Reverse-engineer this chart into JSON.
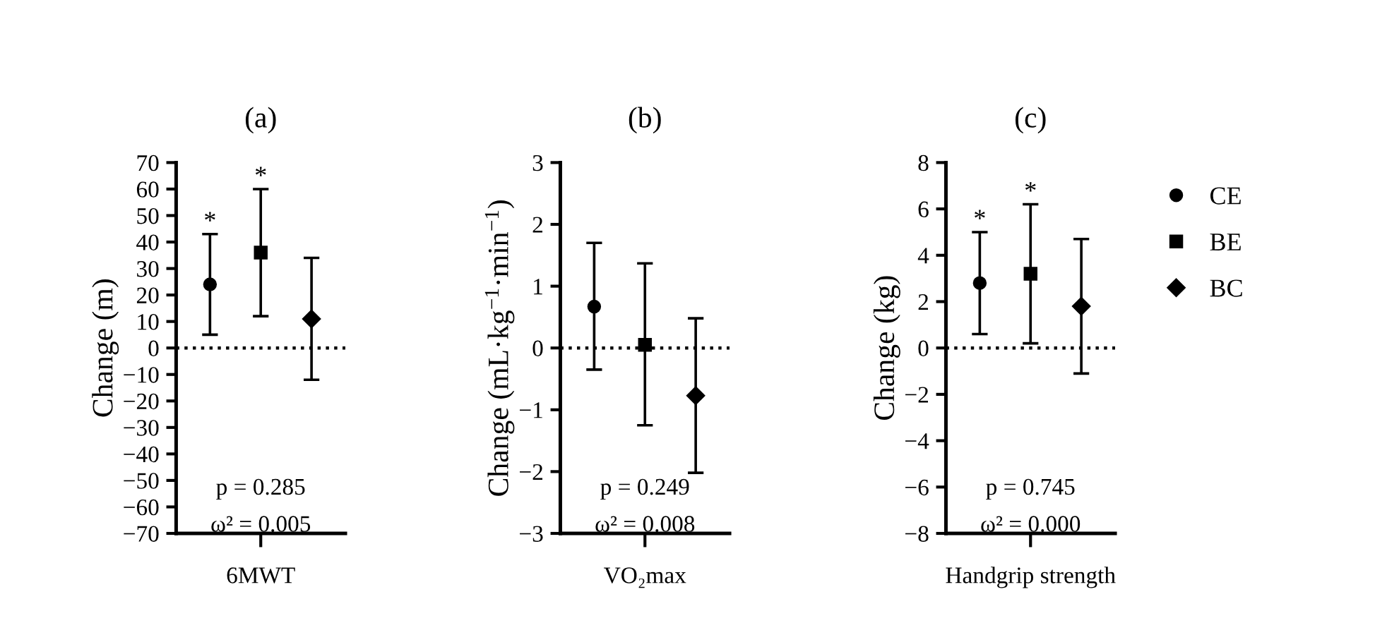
{
  "chart_data": [
    {
      "type": "scatter",
      "title": "(a)",
      "ylabel": "Change (m)",
      "categories": [
        "6MWT"
      ],
      "ylim": [
        -70,
        70
      ],
      "yticks": [
        {
          "value": -70,
          "label": "−70"
        },
        {
          "value": -60,
          "label": "−60"
        },
        {
          "value": -50,
          "label": "−50"
        },
        {
          "value": -40,
          "label": "−40"
        },
        {
          "value": -30,
          "label": "−30"
        },
        {
          "value": -20,
          "label": "−20"
        },
        {
          "value": -10,
          "label": "−10"
        },
        0,
        10,
        20,
        30,
        40,
        50,
        60,
        70
      ],
      "series": [
        {
          "color": "#000000",
          "marker": "circle",
          "values": [
            24
          ],
          "errors": [
            [
              5,
              43
            ]
          ],
          "value_labels": [
            "*"
          ]
        },
        {
          "color": "#000000",
          "marker": "square",
          "values": [
            36
          ],
          "errors": [
            [
              12,
              60
            ]
          ],
          "value_labels": [
            "*"
          ]
        },
        {
          "color": "#000000",
          "marker": "diamond",
          "values": [
            11
          ],
          "errors": [
            [
              -12,
              34
            ]
          ]
        }
      ],
      "ref_lines": [
        {
          "axis": "y",
          "value": 0,
          "line_style": "dotted",
          "color": "#000000"
        }
      ],
      "annotations": [
        "p = 0.285",
        "ω² = 0.005"
      ],
      "grid": false
    },
    {
      "type": "scatter",
      "title": "(b)",
      "ylabel": "Change (mL·kg$^{−1}$·min$^{−1}$)",
      "categories": [
        "VO₂max"
      ],
      "ylim": [
        -3,
        3
      ],
      "yticks": [
        {
          "value": -3,
          "label": "−3"
        },
        {
          "value": -2,
          "label": "−2"
        },
        {
          "value": -1,
          "label": "−1"
        },
        0,
        1,
        2,
        3
      ],
      "series": [
        {
          "color": "#000000",
          "marker": "circle",
          "values": [
            0.67
          ],
          "errors": [
            [
              -0.35,
              1.7
            ]
          ]
        },
        {
          "color": "#000000",
          "marker": "square",
          "values": [
            0.05
          ],
          "errors": [
            [
              -1.25,
              1.37
            ]
          ]
        },
        {
          "color": "#000000",
          "marker": "diamond",
          "values": [
            -0.77
          ],
          "errors": [
            [
              -2.02,
              0.48
            ]
          ]
        }
      ],
      "ref_lines": [
        {
          "axis": "y",
          "value": 0,
          "line_style": "dotted",
          "color": "#000000"
        }
      ],
      "annotations": [
        "p = 0.249",
        "ω² = 0.008"
      ],
      "grid": false
    },
    {
      "type": "scatter",
      "title": "(c)",
      "ylabel": "Change (kg)",
      "categories": [
        "Handgrip strength"
      ],
      "ylim": [
        -8,
        8
      ],
      "yticks": [
        {
          "value": -8,
          "label": "−8"
        },
        {
          "value": -6,
          "label": "−6"
        },
        {
          "value": -4,
          "label": "−4"
        },
        {
          "value": -2,
          "label": "−2"
        },
        0,
        2,
        4,
        6,
        8
      ],
      "series": [
        {
          "name": "CE",
          "color": "#000000",
          "marker": "circle",
          "values": [
            2.8
          ],
          "errors": [
            [
              0.6,
              5.0
            ]
          ],
          "value_labels": [
            "*"
          ]
        },
        {
          "name": "BE",
          "color": "#000000",
          "marker": "square",
          "values": [
            3.2
          ],
          "errors": [
            [
              0.2,
              6.2
            ]
          ],
          "value_labels": [
            "*"
          ]
        },
        {
          "name": "BC",
          "color": "#000000",
          "marker": "diamond",
          "values": [
            1.8
          ],
          "errors": [
            [
              -1.1,
              4.7
            ]
          ]
        }
      ],
      "ref_lines": [
        {
          "axis": "y",
          "value": 0,
          "line_style": "dotted",
          "color": "#000000"
        }
      ],
      "annotations": [
        "p = 0.745",
        "ω² = 0.000"
      ],
      "grid": false,
      "legend": "right"
    }
  ]
}
